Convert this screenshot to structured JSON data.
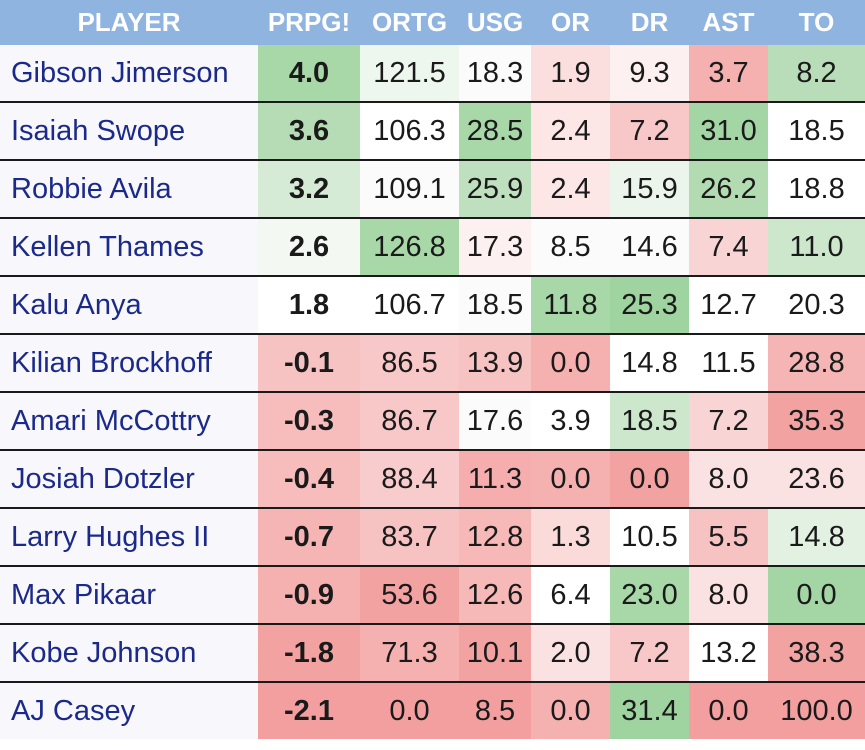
{
  "headers": [
    "PLAYER",
    "PRPG!",
    "ORTG",
    "USG",
    "OR",
    "DR",
    "AST",
    "TO"
  ],
  "rows": [
    {
      "player": "Gibson Jimerson",
      "cells": [
        {
          "v": "4.0",
          "bg": "#a8d7a8"
        },
        {
          "v": "121.5",
          "bg": "#eef7ee"
        },
        {
          "v": "18.3",
          "bg": "#fbfbfb"
        },
        {
          "v": "1.9",
          "bg": "#fbdede"
        },
        {
          "v": "9.3",
          "bg": "#fdf0f0"
        },
        {
          "v": "3.7",
          "bg": "#f5b0b0"
        },
        {
          "v": "8.2",
          "bg": "#b8ddb8"
        }
      ]
    },
    {
      "player": "Isaiah Swope",
      "cells": [
        {
          "v": "3.6",
          "bg": "#b5dcb5"
        },
        {
          "v": "106.3",
          "bg": "#ffffff"
        },
        {
          "v": "28.5",
          "bg": "#a8d7a8"
        },
        {
          "v": "2.4",
          "bg": "#fde6e6"
        },
        {
          "v": "7.2",
          "bg": "#f8c8c8"
        },
        {
          "v": "31.0",
          "bg": "#a4d5a4"
        },
        {
          "v": "18.5",
          "bg": "#ffffff"
        }
      ]
    },
    {
      "player": "Robbie Avila",
      "cells": [
        {
          "v": "3.2",
          "bg": "#d6ebd6"
        },
        {
          "v": "109.1",
          "bg": "#fbfbfb"
        },
        {
          "v": "25.9",
          "bg": "#bfe0bf"
        },
        {
          "v": "2.4",
          "bg": "#fde6e6"
        },
        {
          "v": "15.9",
          "bg": "#ebf5eb"
        },
        {
          "v": "26.2",
          "bg": "#b2dbb2"
        },
        {
          "v": "18.8",
          "bg": "#ffffff"
        }
      ]
    },
    {
      "player": "Kellen Thames",
      "cells": [
        {
          "v": "2.6",
          "bg": "#f3f8f3"
        },
        {
          "v": "126.8",
          "bg": "#a8d7a8"
        },
        {
          "v": "17.3",
          "bg": "#fdf0f0"
        },
        {
          "v": "8.5",
          "bg": "#fbfbfb"
        },
        {
          "v": "14.6",
          "bg": "#fbfbfb"
        },
        {
          "v": "7.4",
          "bg": "#f8d4d4"
        },
        {
          "v": "11.0",
          "bg": "#cce7cc"
        }
      ]
    },
    {
      "player": "Kalu Anya",
      "cells": [
        {
          "v": "1.8",
          "bg": "#ffffff"
        },
        {
          "v": "106.7",
          "bg": "#ffffff"
        },
        {
          "v": "18.5",
          "bg": "#fbfbfb"
        },
        {
          "v": "11.8",
          "bg": "#a8d7a8"
        },
        {
          "v": "25.3",
          "bg": "#9fd39f"
        },
        {
          "v": "12.7",
          "bg": "#ffffff"
        },
        {
          "v": "20.3",
          "bg": "#ffffff"
        }
      ]
    },
    {
      "player": "Kilian Brockhoff",
      "cells": [
        {
          "v": "-0.1",
          "bg": "#f7c2c2"
        },
        {
          "v": "86.5",
          "bg": "#f8c8c8"
        },
        {
          "v": "13.9",
          "bg": "#f7c2c2"
        },
        {
          "v": "0.0",
          "bg": "#f5b0b0"
        },
        {
          "v": "14.8",
          "bg": "#ffffff"
        },
        {
          "v": "11.5",
          "bg": "#ffffff"
        },
        {
          "v": "28.8",
          "bg": "#f5b5b5"
        }
      ]
    },
    {
      "player": "Amari McCottry",
      "cells": [
        {
          "v": "-0.3",
          "bg": "#f7bdbd"
        },
        {
          "v": "86.7",
          "bg": "#f8c8c8"
        },
        {
          "v": "17.6",
          "bg": "#fbfbfb"
        },
        {
          "v": "3.9",
          "bg": "#ffffff"
        },
        {
          "v": "18.5",
          "bg": "#cce7cc"
        },
        {
          "v": "7.2",
          "bg": "#f8d4d4"
        },
        {
          "v": "35.3",
          "bg": "#f3a2a2"
        }
      ]
    },
    {
      "player": "Josiah Dotzler",
      "cells": [
        {
          "v": "-0.4",
          "bg": "#f7bdbd"
        },
        {
          "v": "88.4",
          "bg": "#f8cccc"
        },
        {
          "v": "11.3",
          "bg": "#f5adad"
        },
        {
          "v": "0.0",
          "bg": "#f5b0b0"
        },
        {
          "v": "0.0",
          "bg": "#f3a2a2"
        },
        {
          "v": "8.0",
          "bg": "#fbe2e2"
        },
        {
          "v": "23.6",
          "bg": "#fbe2e2"
        }
      ]
    },
    {
      "player": "Larry Hughes II",
      "cells": [
        {
          "v": "-0.7",
          "bg": "#f5b5b5"
        },
        {
          "v": "83.7",
          "bg": "#f7c2c2"
        },
        {
          "v": "12.8",
          "bg": "#f7b8b8"
        },
        {
          "v": "1.3",
          "bg": "#fbdada"
        },
        {
          "v": "10.5",
          "bg": "#ffffff"
        },
        {
          "v": "5.5",
          "bg": "#f7c2c2"
        },
        {
          "v": "14.8",
          "bg": "#e3f1e3"
        }
      ]
    },
    {
      "player": "Max Pikaar",
      "cells": [
        {
          "v": "-0.9",
          "bg": "#f5b0b0"
        },
        {
          "v": "53.6",
          "bg": "#f3a2a2"
        },
        {
          "v": "12.6",
          "bg": "#f7b8b8"
        },
        {
          "v": "6.4",
          "bg": "#ffffff"
        },
        {
          "v": "23.0",
          "bg": "#a8d7a8"
        },
        {
          "v": "8.0",
          "bg": "#fbe2e2"
        },
        {
          "v": "0.0",
          "bg": "#a4d5a4"
        }
      ]
    },
    {
      "player": "Kobe Johnson",
      "cells": [
        {
          "v": "-1.8",
          "bg": "#f3a2a2"
        },
        {
          "v": "71.3",
          "bg": "#f5b0b0"
        },
        {
          "v": "10.1",
          "bg": "#f3a2a2"
        },
        {
          "v": "2.0",
          "bg": "#fbe2e2"
        },
        {
          "v": "7.2",
          "bg": "#f8c8c8"
        },
        {
          "v": "13.2",
          "bg": "#ffffff"
        },
        {
          "v": "38.3",
          "bg": "#f3a2a2"
        }
      ]
    },
    {
      "player": "AJ Casey",
      "cells": [
        {
          "v": "-2.1",
          "bg": "#f39f9f"
        },
        {
          "v": "0.0",
          "bg": "#f39f9f"
        },
        {
          "v": "8.5",
          "bg": "#f39f9f"
        },
        {
          "v": "0.0",
          "bg": "#f5b0b0"
        },
        {
          "v": "31.4",
          "bg": "#9fd39f"
        },
        {
          "v": "0.0",
          "bg": "#f39f9f"
        },
        {
          "v": "100.0",
          "bg": "#f39f9f"
        }
      ]
    }
  ]
}
